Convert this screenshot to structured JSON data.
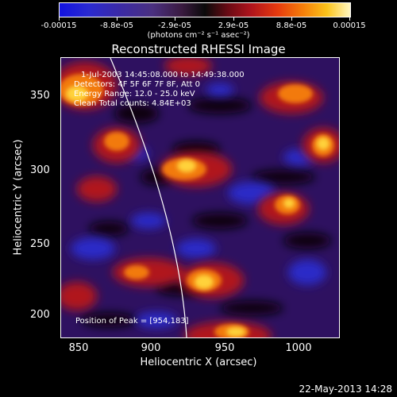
{
  "colorbar": {
    "tick_labels": [
      "-0.00015",
      "-8.8e-05",
      "-2.9e-05",
      "2.9e-05",
      "8.8e-05",
      "0.00015"
    ],
    "units": "(photons cm⁻² s⁻¹ asec⁻²)"
  },
  "title": "Reconstructed RHESSI Image",
  "annotations": {
    "time": "1-Jul-2003 14:45:08.000 to 14:49:38.000",
    "detectors": "Detectors: 4F 5F 6F 7F 8F, Att 0",
    "energy": "Energy Range: 12.0 - 25.0 keV",
    "clean": "Clean     Total counts: 4.84E+03",
    "peak": "Position of Peak = [954,183]"
  },
  "axes": {
    "xlabel": "Heliocentric X (arcsec)",
    "ylabel": "Heliocentric Y (arcsec)",
    "x_ticks": [
      "850",
      "900",
      "950",
      "1000"
    ],
    "y_ticks": [
      "350",
      "300",
      "250",
      "200"
    ],
    "xlim": [
      837,
      1027
    ],
    "ylim": [
      183,
      373
    ]
  },
  "limb_color": "#ffffff",
  "footer": "22-May-2013 14:28"
}
